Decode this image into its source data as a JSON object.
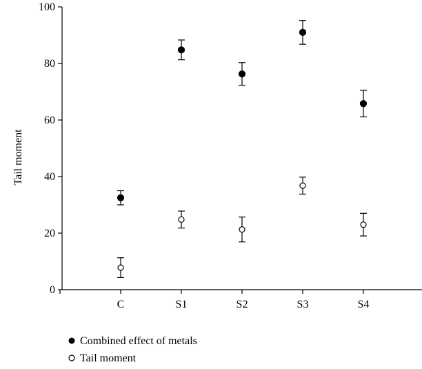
{
  "chart_data": {
    "type": "scatter",
    "title": "",
    "xlabel": "",
    "ylabel": "Tail moment",
    "categories": [
      "C",
      "S1",
      "S2",
      "S3",
      "S4"
    ],
    "ylim": [
      0,
      100
    ],
    "yticks": [
      0,
      20,
      40,
      60,
      80,
      100
    ],
    "grid": false,
    "error_bars": true,
    "legend_placement": "bottom-left",
    "series": [
      {
        "name": "Combined effect of metals",
        "marker": "filled-circle",
        "values": [
          32.5,
          84.8,
          76.3,
          91.0,
          65.8
        ],
        "errors": [
          2.5,
          3.5,
          4.0,
          4.2,
          4.7
        ]
      },
      {
        "name": "Tail moment",
        "marker": "open-circle",
        "values": [
          7.8,
          24.8,
          21.3,
          36.8,
          23.0
        ],
        "errors": [
          3.5,
          3.0,
          4.4,
          3.0,
          4.0
        ]
      }
    ],
    "colors": {
      "axis": "#000000",
      "marker": "#000000",
      "open_fill": "#ffffff"
    }
  }
}
